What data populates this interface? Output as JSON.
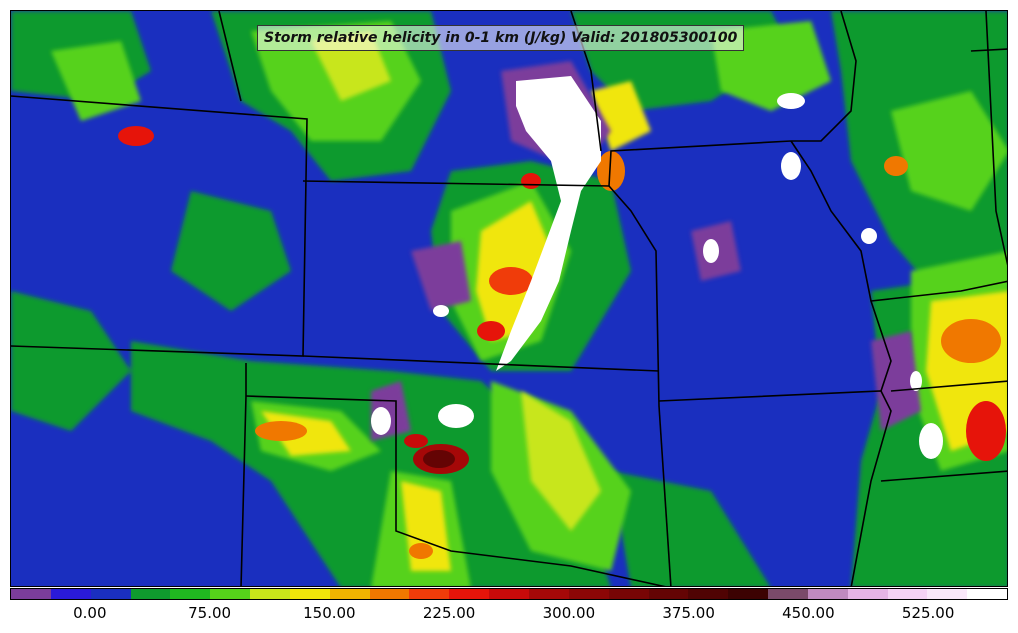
{
  "title": "Storm relative helicity in 0-1 km (J/kg) Valid: 201805300100",
  "colorbar": {
    "colors": [
      "#7b3d9b",
      "#2a1ad8",
      "#1a2fbf",
      "#0f9a2e",
      "#20b820",
      "#56d21a",
      "#c8e61a",
      "#f0e60a",
      "#f0b400",
      "#f07800",
      "#f03c0a",
      "#e6140a",
      "#c80a0a",
      "#a50808",
      "#8c0606",
      "#780505",
      "#640404",
      "#500303",
      "#3c0202",
      "#7a4a6a",
      "#c08ac0",
      "#e6b4e6",
      "#f5d2f5",
      "#fae8fa",
      "#ffffff"
    ],
    "tick_labels": [
      "0.00",
      "75.00",
      "150.00",
      "225.00",
      "300.00",
      "375.00",
      "450.00",
      "525.00"
    ],
    "tick_values": [
      0,
      75,
      150,
      225,
      300,
      375,
      450,
      525
    ],
    "min": -50,
    "max": 575
  }
}
